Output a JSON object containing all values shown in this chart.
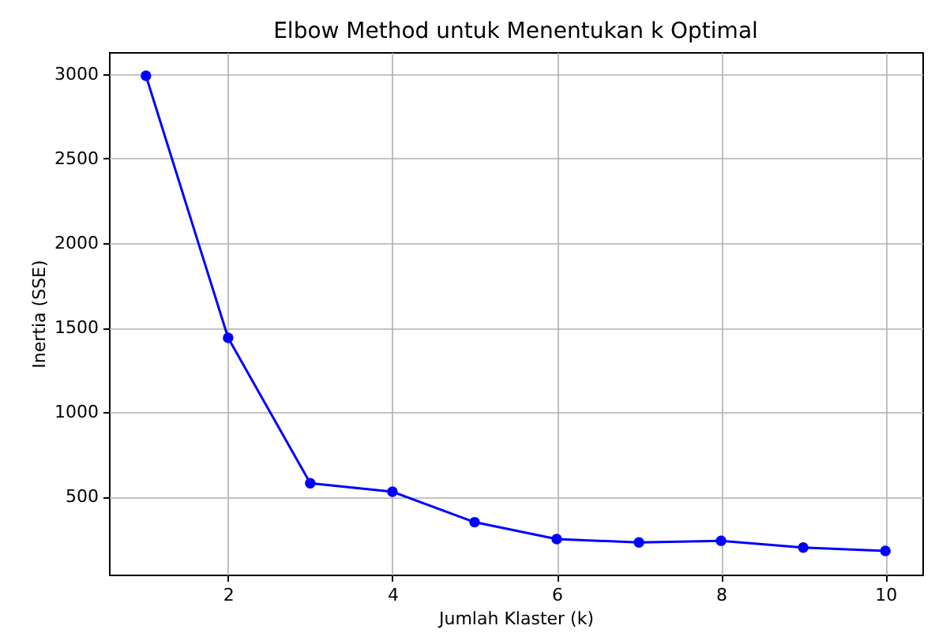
{
  "chart_data": {
    "type": "line",
    "title": "Elbow Method untuk Menentukan k Optimal",
    "xlabel": "Jumlah Klaster (k)",
    "ylabel": "Inertia (SSE)",
    "x": [
      1,
      2,
      3,
      4,
      5,
      6,
      7,
      8,
      9,
      10
    ],
    "series": [
      {
        "color": "#0000ff",
        "values": [
          2990,
          1440,
          580,
          530,
          350,
          250,
          230,
          240,
          200,
          180
        ]
      }
    ],
    "xlim": [
      0.55,
      10.45
    ],
    "xticks": [
      2,
      4,
      6,
      8,
      10
    ],
    "ylim": [
      40,
      3130
    ],
    "yticks": [
      500,
      1000,
      1500,
      2000,
      2500,
      3000
    ],
    "grid": true,
    "marker": "circle",
    "line_style": "solid"
  }
}
